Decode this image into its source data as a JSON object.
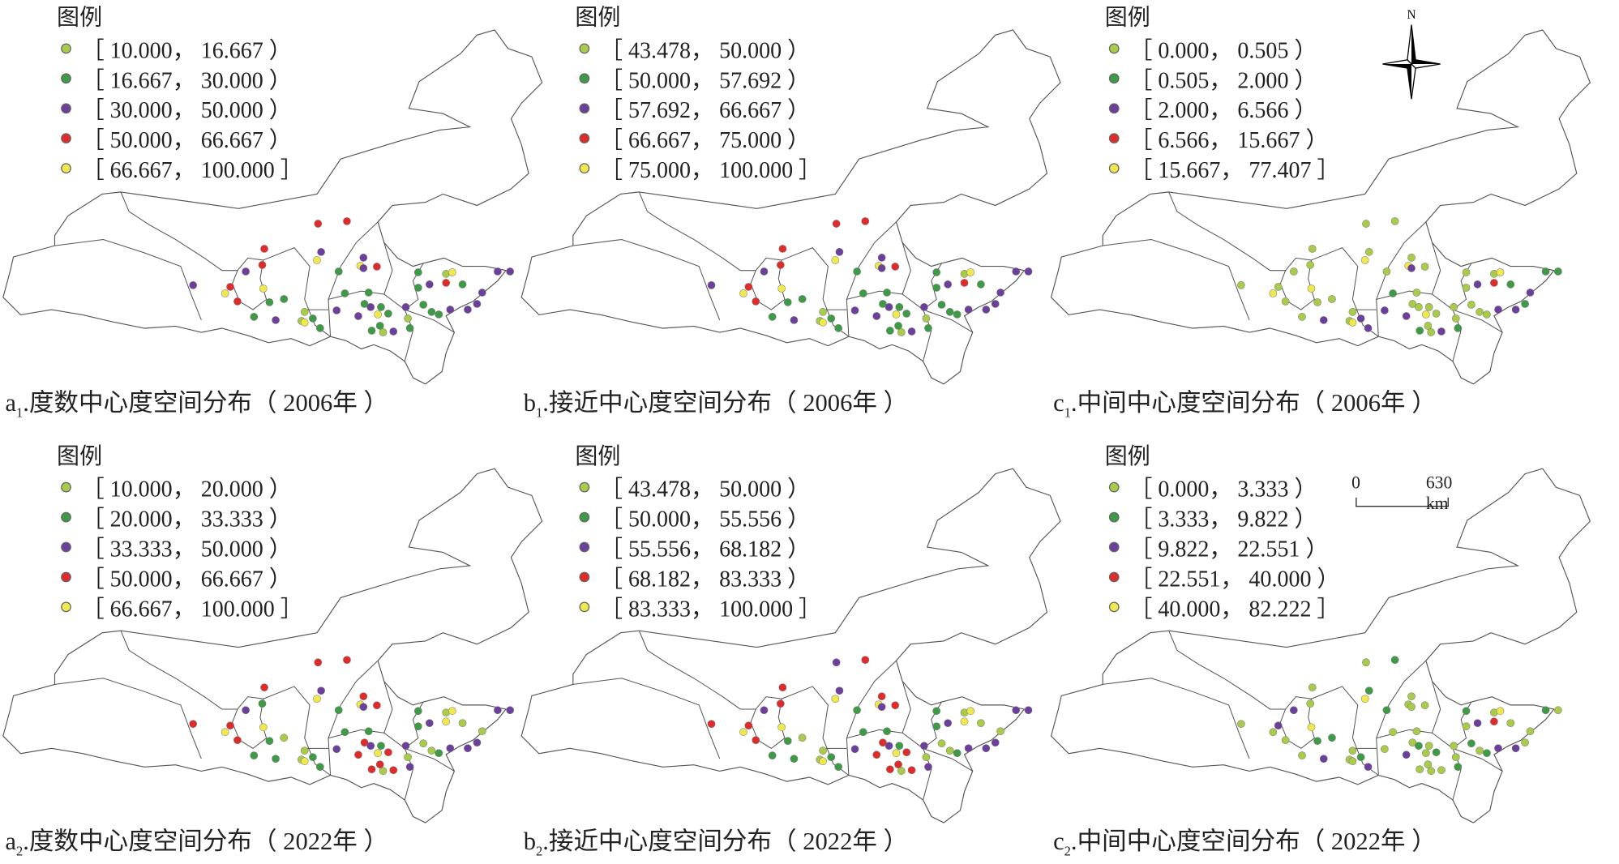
{
  "legend_title": "图例",
  "colors": [
    "#a9cb4a",
    "#3d9b45",
    "#6b3f9b",
    "#e02b2b",
    "#efe84f"
  ],
  "north_label": "N",
  "scale_bar": {
    "start": "0",
    "end": "630 km"
  },
  "panels": [
    {
      "id": "a1",
      "letter": "a",
      "sub": "1",
      "caption": ".度数中心度空间分布（ 2006年 ）",
      "legend": [
        "［ 10.000， 16.667 ）",
        "［ 16.667， 30.000 ）",
        "［ 30.000， 50.000 ）",
        "［ 50.000， 66.667 ）",
        "［ 66.667， 100.000 ］"
      ],
      "classes": [
        3,
        3,
        3,
        3,
        2,
        2,
        4,
        2,
        4,
        2,
        3,
        1,
        1,
        1,
        1,
        0,
        4,
        2,
        1,
        3,
        1,
        2,
        2,
        2,
        3,
        4,
        3,
        4,
        1,
        1,
        1,
        2,
        0,
        1,
        0,
        4,
        1,
        2,
        1,
        2,
        2,
        1,
        4,
        1,
        1,
        1,
        0,
        2,
        2,
        1,
        1,
        2,
        1,
        2,
        2,
        2,
        0,
        1
      ]
    },
    {
      "id": "b1",
      "letter": "b",
      "sub": "1",
      "caption": ".接近中心度空间分布（ 2006年 ）",
      "legend": [
        "［ 43.478， 50.000 ）",
        "［ 50.000， 57.692 ）",
        "［ 57.692， 66.667 ）",
        "［ 66.667， 75.000 ）",
        "［ 75.000， 100.000 ］"
      ],
      "classes": [
        3,
        3,
        3,
        3,
        2,
        2,
        4,
        2,
        4,
        2,
        3,
        1,
        1,
        1,
        1,
        0,
        4,
        2,
        1,
        3,
        1,
        2,
        2,
        2,
        3,
        4,
        3,
        4,
        1,
        1,
        1,
        2,
        0,
        1,
        0,
        4,
        1,
        2,
        1,
        2,
        2,
        1,
        4,
        1,
        1,
        1,
        0,
        2,
        2,
        1,
        1,
        2,
        1,
        2,
        2,
        2,
        0,
        1
      ]
    },
    {
      "id": "c1",
      "letter": "c",
      "sub": "1",
      "caption": ".中间中心度空间分布（ 2006年 ）",
      "legend": [
        "［ 0.000， 0.505 ）",
        "［ 0.505， 2.000 ）",
        "［ 2.000， 6.566 ）",
        "［ 6.566， 15.667 ）",
        "［ 15.667， 77.407 ］"
      ],
      "classes": [
        0,
        0,
        0,
        0,
        0,
        0,
        4,
        0,
        4,
        2,
        0,
        0,
        1,
        0,
        0,
        0,
        4,
        2,
        0,
        3,
        1,
        1,
        1,
        0,
        0,
        4,
        0,
        4,
        0,
        0,
        0,
        2,
        0,
        2,
        0,
        4,
        2,
        2,
        0,
        0,
        2,
        0,
        4,
        0,
        0,
        1,
        0,
        2,
        0,
        0,
        0,
        2,
        0,
        2,
        2,
        1,
        0,
        1
      ]
    },
    {
      "id": "a2",
      "letter": "a",
      "sub": "2",
      "caption": ".度数中心度空间分布（ 2022年 ）",
      "legend": [
        "［ 10.000， 20.000 ）",
        "［ 20.000， 33.333 ）",
        "［ 33.333， 50.000 ）",
        "［ 50.000， 66.667 ）",
        "［ 66.667， 100.000 ］"
      ],
      "classes": [
        3,
        3,
        3,
        1,
        2,
        2,
        4,
        3,
        4,
        2,
        3,
        1,
        1,
        1,
        1,
        0,
        4,
        2,
        1,
        4,
        0,
        2,
        2,
        3,
        3,
        4,
        3,
        4,
        1,
        0,
        1,
        1,
        0,
        1,
        0,
        4,
        1,
        2,
        3,
        2,
        3,
        1,
        4,
        3,
        3,
        3,
        0,
        3,
        2,
        0,
        0,
        2,
        1,
        2,
        0,
        2,
        0,
        2
      ]
    },
    {
      "id": "b2",
      "letter": "b",
      "sub": "2",
      "caption": ".接近中心度空间分布（ 2022年 ）",
      "legend": [
        "［ 43.478， 50.000 ）",
        "［ 50.000， 55.556 ）",
        "［ 55.556， 68.182 ）",
        "［ 68.182， 83.333 ）",
        "［ 83.333， 100.000 ］"
      ],
      "classes": [
        2,
        3,
        3,
        3,
        2,
        2,
        4,
        3,
        4,
        2,
        3,
        1,
        1,
        1,
        1,
        0,
        4,
        2,
        1,
        4,
        0,
        2,
        2,
        3,
        3,
        4,
        3,
        4,
        1,
        0,
        1,
        1,
        0,
        1,
        0,
        4,
        1,
        2,
        3,
        2,
        3,
        1,
        4,
        3,
        3,
        3,
        0,
        3,
        2,
        0,
        0,
        2,
        1,
        2,
        0,
        2,
        0,
        2
      ]
    },
    {
      "id": "c2",
      "letter": "c",
      "sub": "2",
      "caption": ".中间中心度空间分布（ 2022年 ）",
      "legend": [
        "［ 0.000， 3.333 ）",
        "［ 3.333， 9.822 ）",
        "［ 9.822， 22.551 ）",
        "［ 22.551， 40.000 ）",
        "［ 40.000， 82.222 ］"
      ],
      "classes": [
        0,
        1,
        0,
        0,
        2,
        1,
        4,
        0,
        0,
        0,
        0,
        1,
        0,
        0,
        1,
        0,
        4,
        2,
        0,
        3,
        0,
        1,
        0,
        0,
        2,
        0,
        0,
        4,
        1,
        1,
        0,
        2,
        0,
        1,
        0,
        0,
        2,
        0,
        0,
        1,
        2,
        0,
        0,
        1,
        0,
        0,
        0,
        0,
        0,
        1,
        0,
        2,
        1,
        2,
        0,
        0,
        0,
        1
      ]
    }
  ]
}
